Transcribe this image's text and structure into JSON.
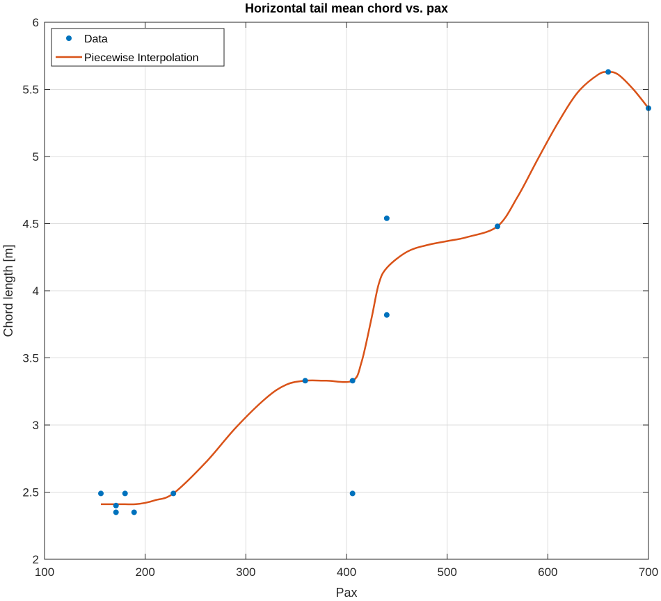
{
  "chart_data": {
    "type": "line",
    "title": "Horizontal tail mean chord vs. pax",
    "xlabel": "Pax",
    "ylabel": "Chord length [m]",
    "xlim": [
      100,
      700
    ],
    "ylim": [
      2,
      6
    ],
    "xticks": [
      100,
      200,
      300,
      400,
      500,
      600,
      700
    ],
    "yticks": [
      2,
      2.5,
      3,
      3.5,
      4,
      4.5,
      5,
      5.5,
      6
    ],
    "xtick_labels": [
      "100",
      "200",
      "300",
      "400",
      "500",
      "600",
      "700"
    ],
    "ytick_labels": [
      "2",
      "2.5",
      "3",
      "3.5",
      "4",
      "4.5",
      "5",
      "5.5",
      "6"
    ],
    "grid": true,
    "legend_position": "top-left",
    "series": [
      {
        "name": "Data",
        "kind": "markers",
        "color": "#0072BD",
        "x": [
          156,
          171,
          171,
          180,
          189,
          228,
          359,
          406,
          406,
          440,
          440,
          550,
          660,
          700
        ],
        "y": [
          2.49,
          2.4,
          2.35,
          2.49,
          2.35,
          2.49,
          3.33,
          3.33,
          2.49,
          4.54,
          3.82,
          4.48,
          5.63,
          5.36
        ]
      },
      {
        "name": "Piecewise Interpolation",
        "kind": "line",
        "color": "#D95319",
        "x": [
          156,
          170,
          180,
          190,
          200,
          210,
          228,
          260,
          290,
          320,
          340,
          359,
          380,
          406,
          415,
          425,
          432,
          440,
          460,
          480,
          500,
          520,
          550,
          570,
          590,
          610,
          630,
          650,
          660,
          670,
          685,
          700
        ],
        "y": [
          2.41,
          2.41,
          2.41,
          2.41,
          2.42,
          2.44,
          2.49,
          2.72,
          2.98,
          3.2,
          3.3,
          3.33,
          3.33,
          3.33,
          3.47,
          3.8,
          4.05,
          4.17,
          4.29,
          4.34,
          4.37,
          4.4,
          4.48,
          4.7,
          4.98,
          5.25,
          5.48,
          5.61,
          5.63,
          5.61,
          5.5,
          5.36
        ]
      }
    ]
  }
}
